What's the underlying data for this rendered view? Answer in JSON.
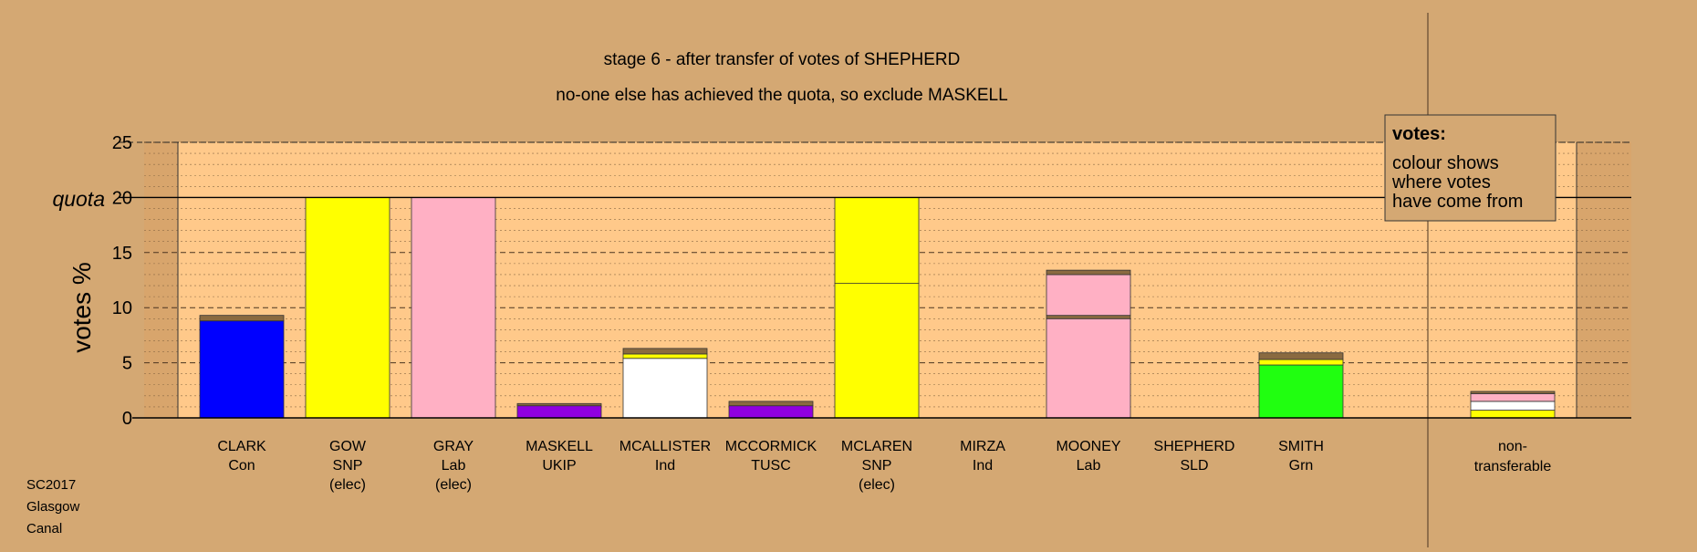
{
  "chart_data": {
    "type": "bar",
    "stacked": true,
    "title": "stage 6 - after transfer of votes of SHEPHERD",
    "subtitle": "no-one else has achieved the quota, so exclude MASKELL",
    "ylabel": "votes %",
    "ylim": [
      0,
      25
    ],
    "yticks": [
      "0",
      "5",
      "10",
      "15",
      "20",
      "25"
    ],
    "quota_label": "quota",
    "quota": 20,
    "grid": true,
    "legend": {
      "title": "votes:",
      "lines": [
        "colour shows",
        "where votes",
        "have come from"
      ],
      "position": "top-right"
    },
    "colors": {
      "Con": "#0000ff",
      "SNP": "#ffff00",
      "Lab": "#ffb0c4",
      "UKIP": "#9000e0",
      "Ind": "#ffffff",
      "TUSC": "#9000e0",
      "Grn": "#20ff10",
      "transfer": "#8a6a40",
      "plot_bg": "#ffc98a",
      "page_bg": "#d4a873"
    },
    "candidates": [
      {
        "name": "CLARK",
        "party": "Con",
        "status": "",
        "segments": [
          {
            "from": "Con",
            "value": 8.8
          },
          {
            "from": "transfer",
            "value": 0.5
          }
        ]
      },
      {
        "name": "GOW",
        "party": "SNP",
        "status": "(elec)",
        "segments": [
          {
            "from": "SNP",
            "value": 20
          }
        ]
      },
      {
        "name": "GRAY",
        "party": "Lab",
        "status": "(elec)",
        "segments": [
          {
            "from": "Lab",
            "value": 20
          }
        ]
      },
      {
        "name": "MASKELL",
        "party": "UKIP",
        "status": "",
        "segments": [
          {
            "from": "UKIP",
            "value": 1.1
          },
          {
            "from": "transfer",
            "value": 0.2
          }
        ]
      },
      {
        "name": "MCALLISTER",
        "party": "Ind",
        "status": "",
        "segments": [
          {
            "from": "Ind",
            "value": 5.4
          },
          {
            "from": "SNP",
            "value": 0.4
          },
          {
            "from": "transfer",
            "value": 0.5
          }
        ]
      },
      {
        "name": "MCCORMICK",
        "party": "TUSC",
        "status": "",
        "segments": [
          {
            "from": "TUSC",
            "value": 1.1
          },
          {
            "from": "transfer",
            "value": 0.4
          }
        ]
      },
      {
        "name": "MCLAREN",
        "party": "SNP",
        "status": "(elec)",
        "segments": [
          {
            "from": "SNP",
            "value": 12.2
          },
          {
            "from": "SNP",
            "value": 7.8
          }
        ]
      },
      {
        "name": "MIRZA",
        "party": "Ind",
        "status": "",
        "segments": []
      },
      {
        "name": "MOONEY",
        "party": "Lab",
        "status": "",
        "segments": [
          {
            "from": "Lab",
            "value": 9.0
          },
          {
            "from": "transfer",
            "value": 0.3
          },
          {
            "from": "Lab",
            "value": 3.7
          },
          {
            "from": "transfer",
            "value": 0.4
          }
        ]
      },
      {
        "name": "SHEPHERD",
        "party": "SLD",
        "status": "",
        "segments": []
      },
      {
        "name": "SMITH",
        "party": "Grn",
        "status": "",
        "segments": [
          {
            "from": "Grn",
            "value": 4.8
          },
          {
            "from": "SNP",
            "value": 0.5
          },
          {
            "from": "transfer",
            "value": 0.6
          }
        ]
      }
    ],
    "nontransferable": {
      "label_lines": [
        "non-",
        "transferable"
      ],
      "segments": [
        {
          "from": "SNP",
          "value": 0.7
        },
        {
          "from": "Ind",
          "value": 0.8
        },
        {
          "from": "Lab",
          "value": 0.7
        },
        {
          "from": "transfer",
          "value": 0.2
        }
      ]
    }
  },
  "footer": {
    "lines": [
      "SC2017",
      "Glasgow",
      "Canal"
    ]
  }
}
